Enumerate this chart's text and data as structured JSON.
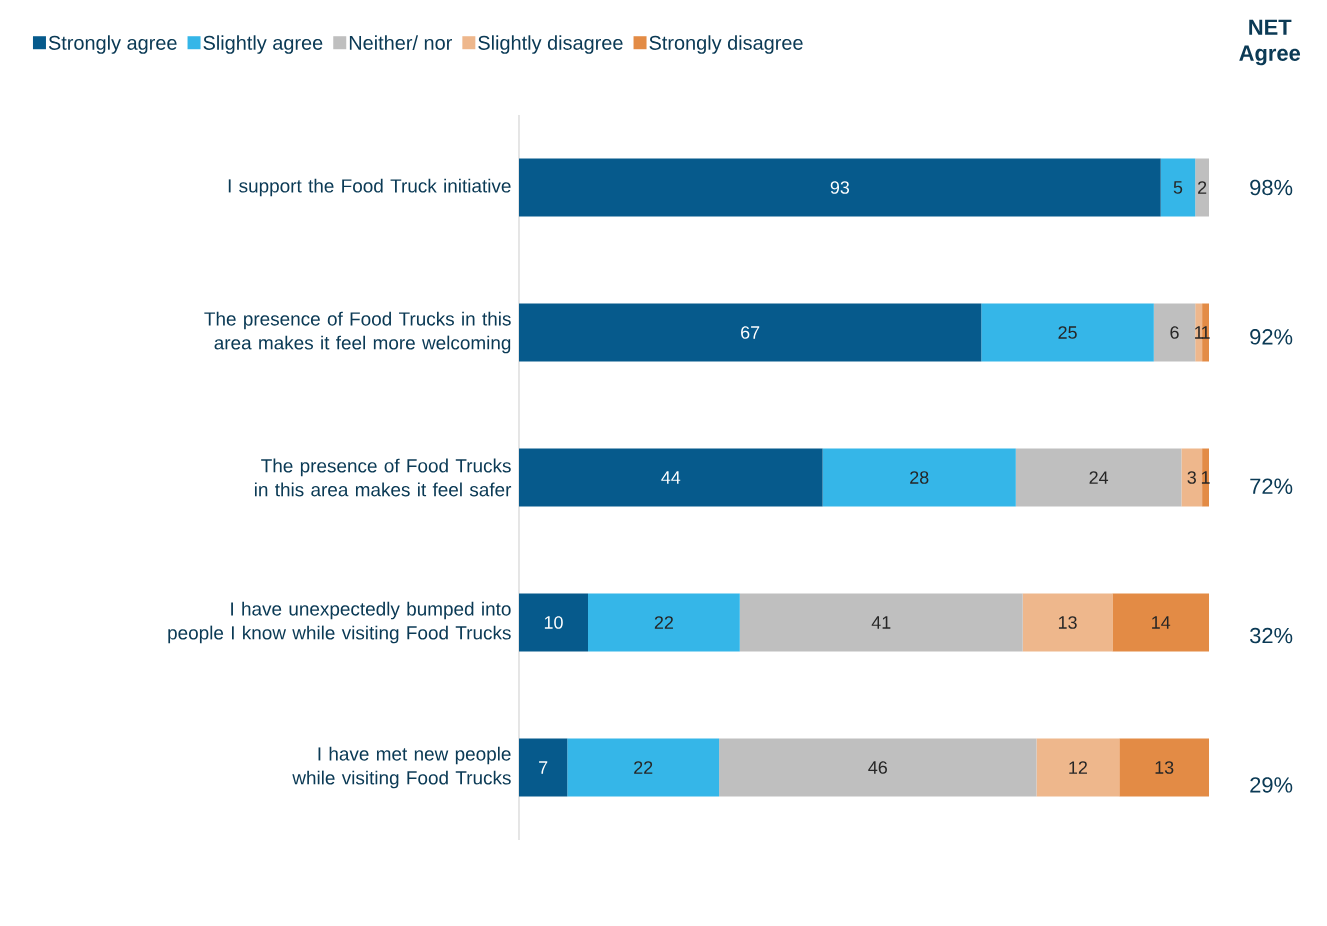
{
  "chart_data": {
    "type": "bar",
    "orientation": "horizontal",
    "stacked": true,
    "data_labels": true,
    "legend": "top",
    "categories": [
      "I support the Food Truck initiative",
      "The presence of Food Trucks in this area makes it feel more welcoming",
      "The presence of Food Trucks in this area makes it feel safer",
      "I have unexpectedly bumped into people I know while visiting Food Trucks",
      "I have met new people while visiting Food Trucks"
    ],
    "series": [
      {
        "name": "Strongly agree",
        "color": "#065a8c",
        "values": [
          93,
          67,
          44,
          10,
          7
        ]
      },
      {
        "name": "Slightly agree",
        "color": "#35b6e8",
        "values": [
          5,
          25,
          28,
          22,
          22
        ]
      },
      {
        "name": "Neither/ nor",
        "color": "#bfbfbf",
        "values": [
          2,
          6,
          24,
          41,
          46
        ]
      },
      {
        "name": "Slightly disagree",
        "color": "#eeb78c",
        "values": [
          null,
          1,
          3,
          13,
          12
        ]
      },
      {
        "name": "Strongly disagree",
        "color": "#e38b45",
        "values": [
          null,
          1,
          1,
          14,
          13
        ]
      }
    ],
    "annotations": [
      "NET Agree",
      "98%",
      "92%",
      "72%",
      "32%",
      "29%"
    ]
  }
}
